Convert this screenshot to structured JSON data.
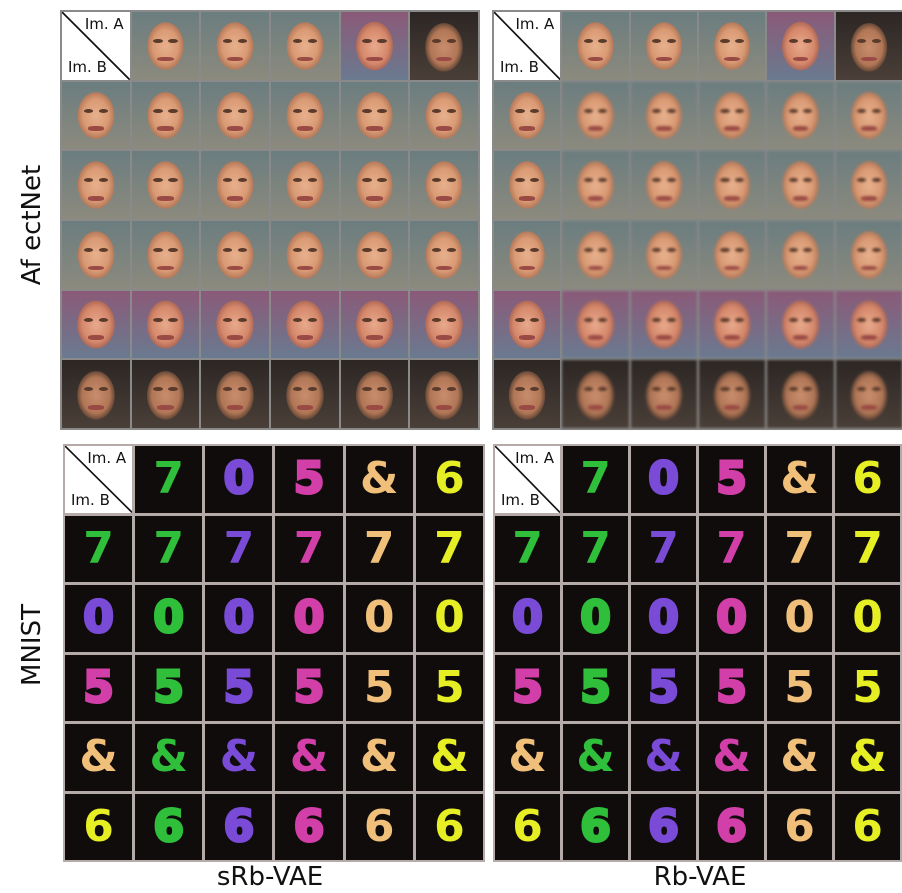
{
  "row_labels": {
    "top": "Af ectNet",
    "bottom": "MNIST"
  },
  "column_labels": {
    "left": "sRb-VAE",
    "right": "Rb-VAE"
  },
  "corner": {
    "a": "Im. A",
    "b": "Im. B"
  },
  "colors": {
    "green": "#2fbf3a",
    "purple": "#7a4bd6",
    "magenta": "#d23fa8",
    "peach": "#f0c07a",
    "yellow": "#e6ef23"
  },
  "mnist_header": [
    "7",
    "0",
    "5",
    "&",
    "6"
  ],
  "mnist_header_colors": [
    "green",
    "purple",
    "magenta",
    "peach",
    "yellow"
  ],
  "mnist_srb": [
    [
      "7",
      "7",
      "7",
      "7",
      "7"
    ],
    [
      "0",
      "0",
      "0",
      "0",
      "0"
    ],
    [
      "5",
      "5",
      "5",
      "5",
      "5"
    ],
    [
      "&",
      "&",
      "&",
      "&",
      "&"
    ],
    [
      "6",
      "6",
      "6",
      "6",
      "6"
    ]
  ],
  "mnist_rb": [
    [
      "7",
      "7",
      "7",
      "7",
      "7"
    ],
    [
      "0",
      "0",
      "0",
      "0",
      "0"
    ],
    [
      "5",
      "5",
      "5",
      "5",
      "5"
    ],
    [
      "&",
      "&",
      "&",
      "&",
      "&"
    ],
    [
      "6",
      "6",
      "6",
      "6",
      "6"
    ]
  ]
}
